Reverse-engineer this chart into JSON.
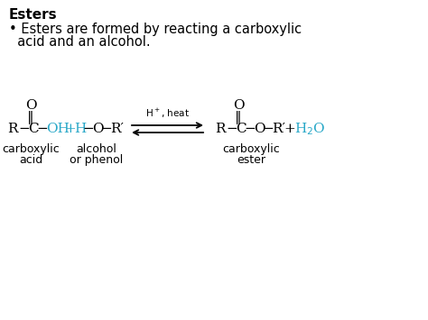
{
  "title": "Esters",
  "bullet_line1": "• Esters are formed by reacting a carboxylic",
  "bullet_line2": "  acid and an alcohol.",
  "bg_color": "#ffffff",
  "black": "#000000",
  "cyan": "#29A8C8",
  "title_fontsize": 11,
  "bullet_fontsize": 10.5,
  "chem_fontsize": 11,
  "label_fontsize": 9
}
